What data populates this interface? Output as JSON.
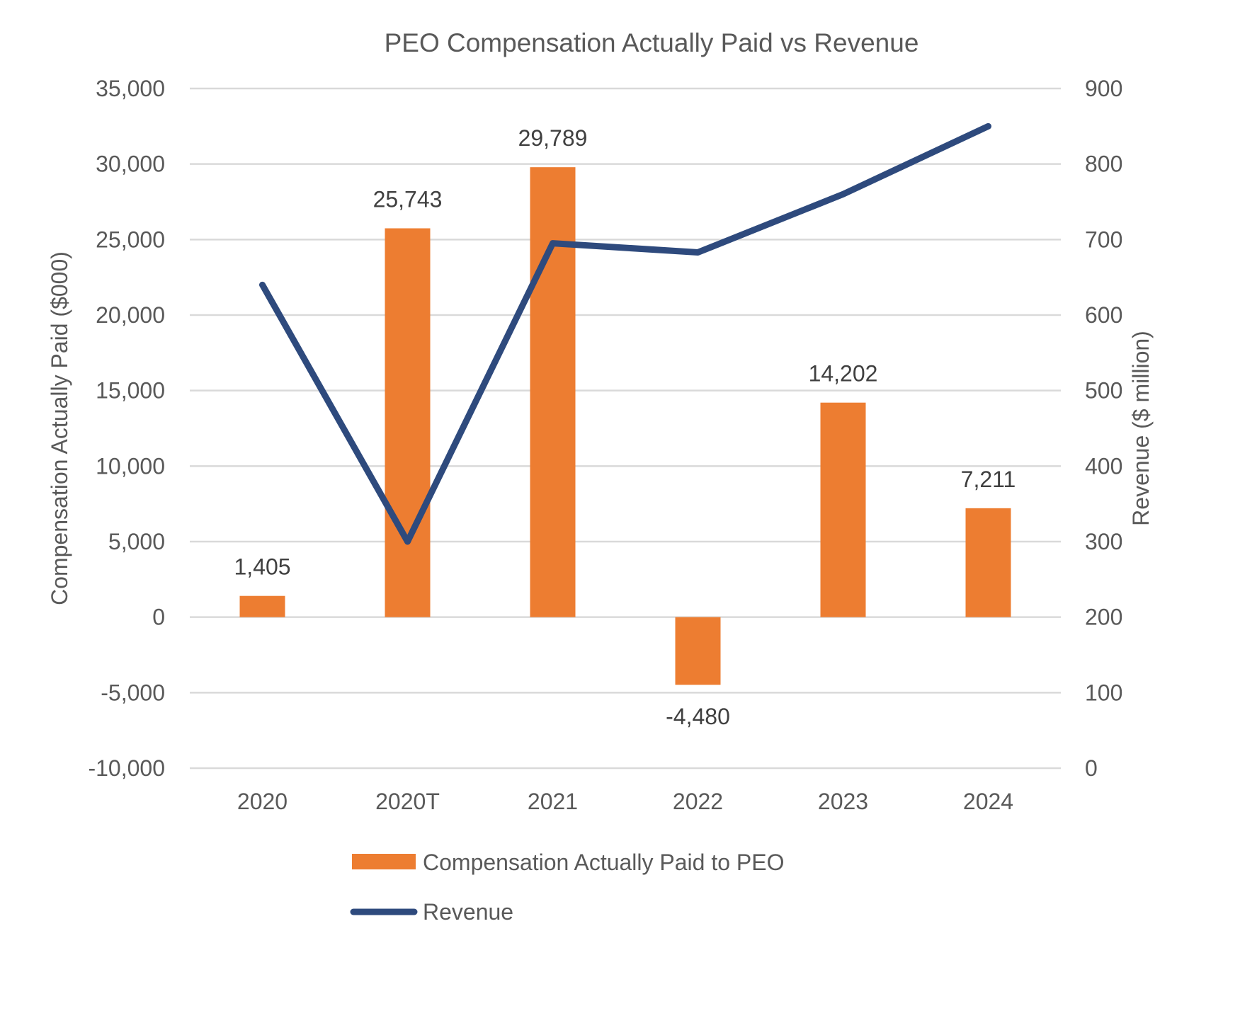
{
  "chart_data": {
    "type": "bar",
    "title": "PEO Compensation Actually Paid vs Revenue",
    "categories": [
      "2020",
      "2020T",
      "2021",
      "2022",
      "2023",
      "2024"
    ],
    "series": [
      {
        "name": "Compensation Actually Paid to PEO",
        "type": "bar",
        "axis": "left",
        "values": [
          1405,
          25743,
          29789,
          -4480,
          14202,
          7211
        ],
        "data_labels": [
          "1,405",
          "25,743",
          "29,789",
          "-4,480",
          "14,202",
          "7,211"
        ],
        "color": "#ED7D31"
      },
      {
        "name": "Revenue",
        "type": "line",
        "axis": "right",
        "values": [
          640,
          300,
          695,
          683,
          760,
          850
        ],
        "color": "#2E4A7D"
      }
    ],
    "y_left": {
      "label": "Compensation Actually Paid ($000)",
      "range": [
        -10000,
        35000
      ],
      "ticks": [
        -10000,
        -5000,
        0,
        5000,
        10000,
        15000,
        20000,
        25000,
        30000,
        35000
      ],
      "tick_labels": [
        "-10,000",
        "-5,000",
        "0",
        "5,000",
        "10,000",
        "15,000",
        "20,000",
        "25,000",
        "30,000",
        "35,000"
      ]
    },
    "y_right": {
      "label": "Revenue ($ million)",
      "range": [
        0,
        900
      ],
      "ticks": [
        0,
        100,
        200,
        300,
        400,
        500,
        600,
        700,
        800,
        900
      ],
      "tick_labels": [
        "0",
        "100",
        "200",
        "300",
        "400",
        "500",
        "600",
        "700",
        "800",
        "900"
      ]
    },
    "grid": true,
    "legend_position": "bottom"
  }
}
